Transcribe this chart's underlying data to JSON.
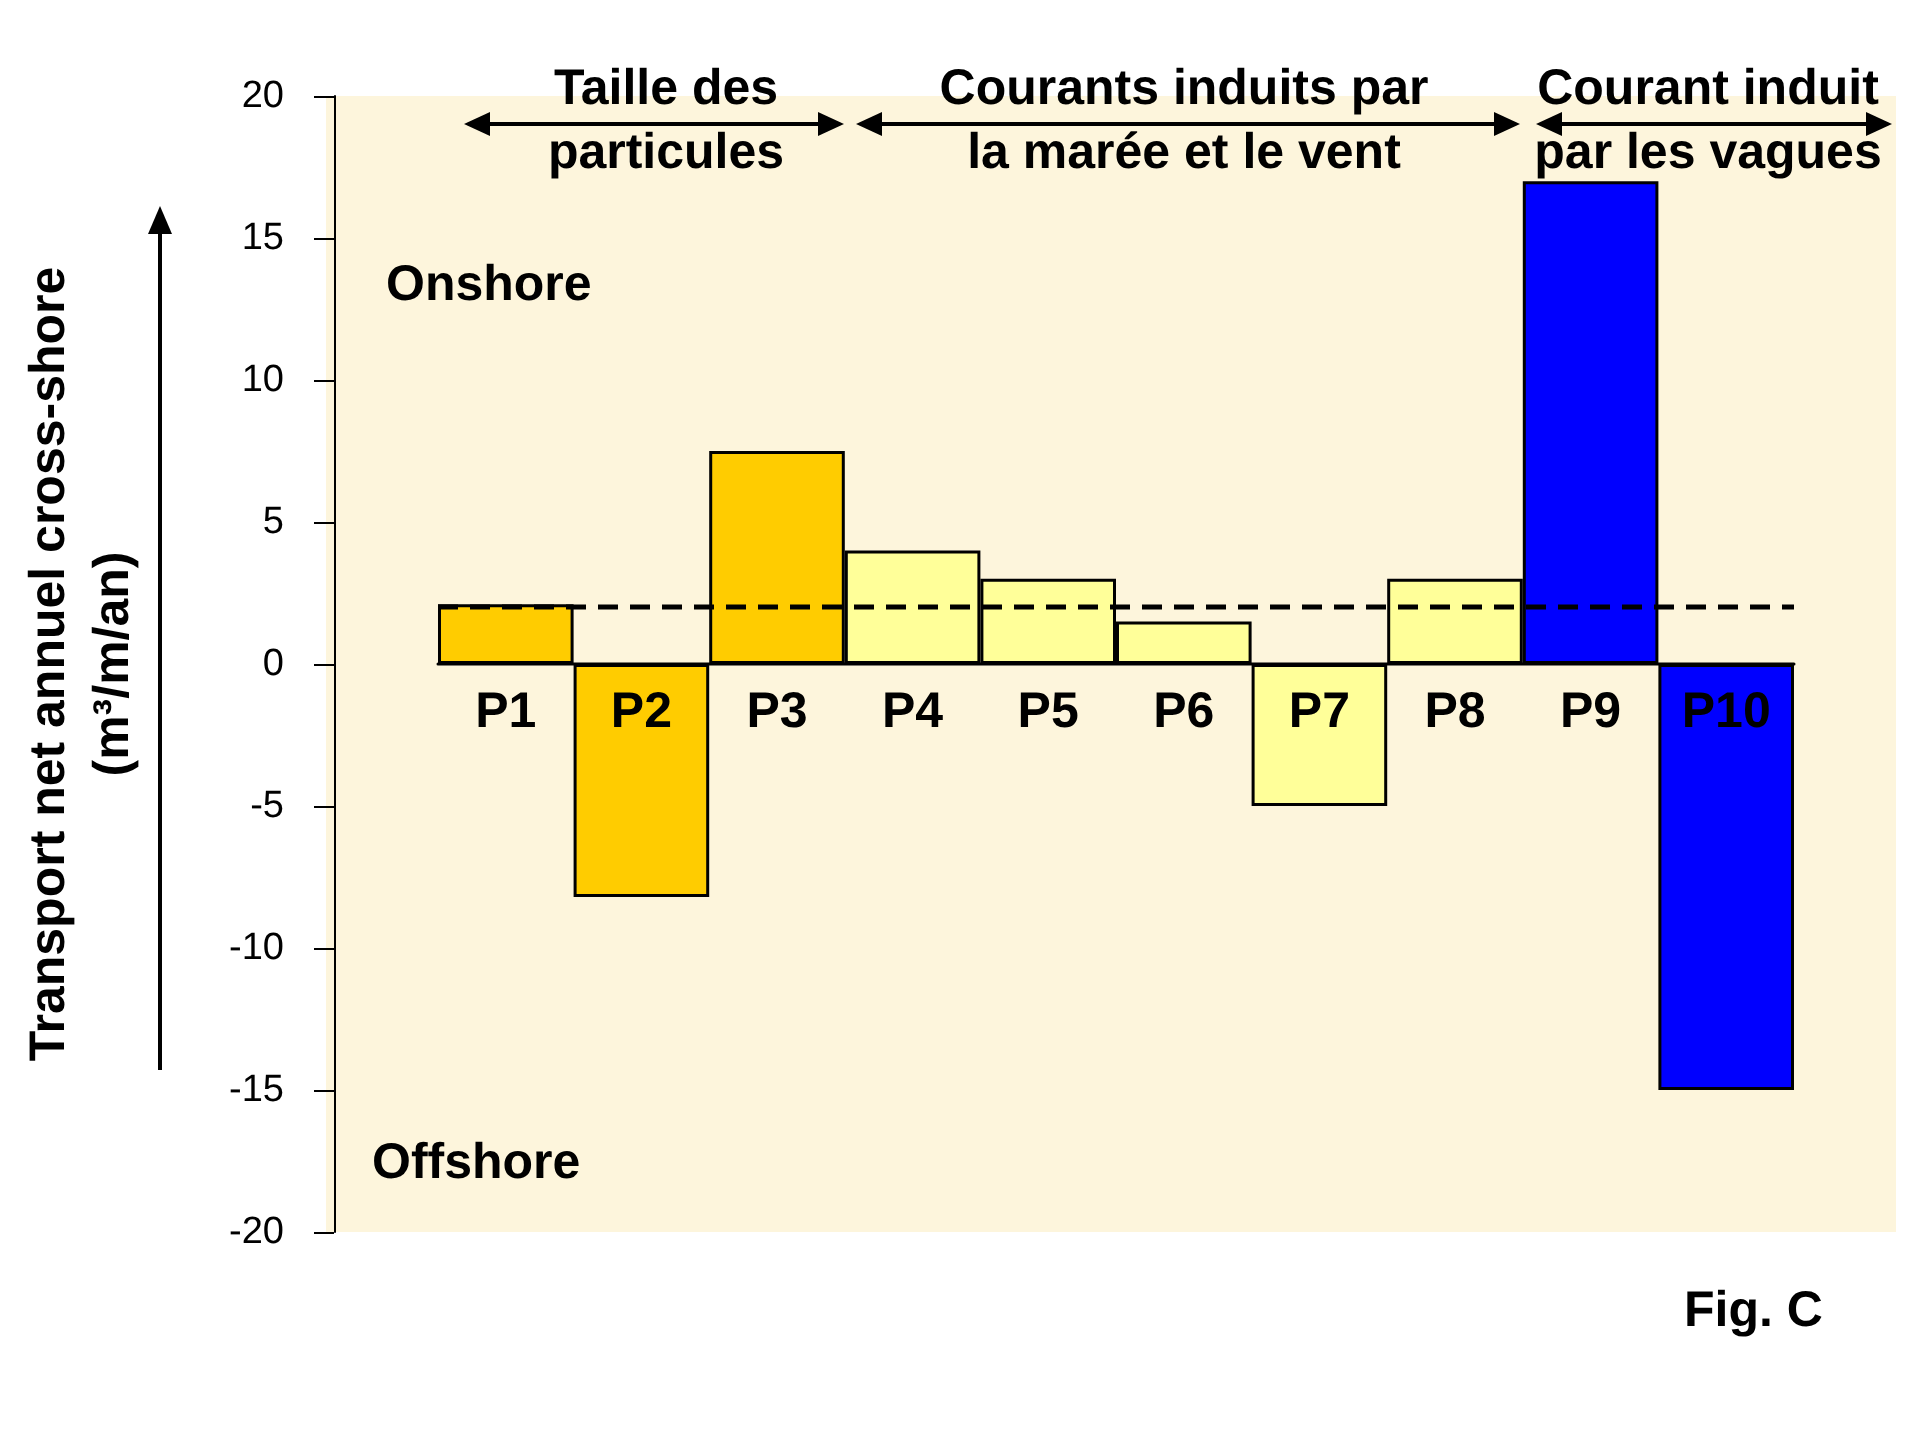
{
  "chart_data": {
    "type": "bar",
    "categories": [
      "P1",
      "P2",
      "P3",
      "P4",
      "P5",
      "P6",
      "P7",
      "P8",
      "P9",
      "P10"
    ],
    "values": [
      2.1,
      -8.2,
      7.5,
      4,
      3,
      1.5,
      -5,
      3,
      17,
      -15
    ],
    "colors": [
      "#ffcc00",
      "#ffcc00",
      "#ffcc00",
      "#ffff99",
      "#ffff99",
      "#ffff99",
      "#ffff99",
      "#ffff99",
      "#0000ff",
      "#0000ff"
    ],
    "ylabel": "Transport net annuel cross-shore\n(m³/m/an)",
    "ylim": [
      -20,
      20
    ],
    "yticks": [
      -20,
      -15,
      -10,
      -5,
      0,
      5,
      10,
      15,
      20
    ],
    "ref_lines": [
      {
        "axis": "y",
        "value": 2,
        "color": "#000000",
        "line_style": "dashed"
      }
    ],
    "annotations": [
      "Taille des\nparticules",
      "Courants induits par\nla marée et le vent",
      "Courant induit\npar les vagues",
      "Onshore",
      "Offshore",
      "Fig. C"
    ]
  }
}
